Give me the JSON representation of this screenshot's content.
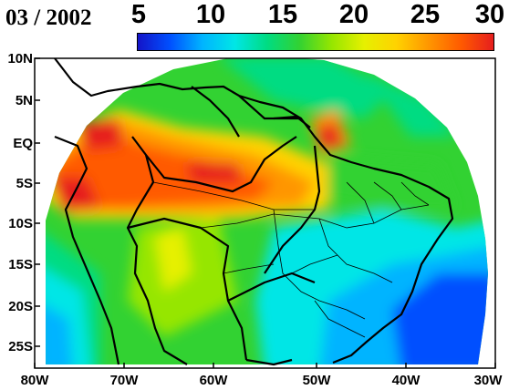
{
  "title": "03 / 2002",
  "colorbar": {
    "labels": [
      "5",
      "10",
      "15",
      "20",
      "25",
      "30"
    ],
    "values": [
      5,
      10,
      15,
      20,
      25,
      30
    ],
    "colors": [
      "#1414c8",
      "#0050ff",
      "#00b4ff",
      "#00e6e6",
      "#00dc82",
      "#32d232",
      "#96e600",
      "#e6f000",
      "#ffd200",
      "#ff9600",
      "#ff5a00",
      "#e61e1e"
    ]
  },
  "axes": {
    "lon_labels": [
      "80W",
      "70W",
      "60W",
      "50W",
      "40W",
      "30W"
    ],
    "lat_labels": [
      "10N",
      "5N",
      "EQ",
      "5S",
      "10S",
      "15S",
      "20S",
      "25S"
    ],
    "lon_range": [
      -80,
      -30
    ],
    "lat_range": [
      -28,
      10
    ]
  }
}
